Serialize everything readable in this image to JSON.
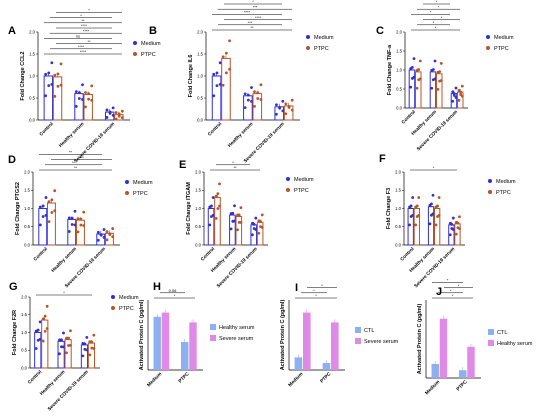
{
  "colors": {
    "medium": "#2f2fd6",
    "ptpc": "#b8542a",
    "healthy_lite": "#8fb0f0",
    "severe_lite": "#e08ae8"
  },
  "chart_data": [
    {
      "id": "A",
      "type": "bar",
      "label": "A",
      "ylabel": "Fold Change CCL2",
      "ylabel_italic": "CCL2",
      "ylim": [
        0,
        2
      ],
      "ticks": [
        "0.0",
        "0.5",
        "1.0",
        "1.5",
        "2.0"
      ],
      "categories": [
        "Control",
        "Healthy serum",
        "Severe COVID-19 serum"
      ],
      "series": [
        {
          "name": "Medium",
          "values": [
            1.0,
            0.6,
            0.18
          ]
        },
        {
          "name": "PTPC",
          "values": [
            0.98,
            0.58,
            0.12
          ]
        }
      ],
      "sig": [
        "****",
        "****",
        "**",
        "ns",
        "****",
        "****",
        "**",
        "*",
        "*"
      ]
    },
    {
      "id": "B",
      "type": "bar",
      "label": "B",
      "ylabel": "Fold Change IL6",
      "ylabel_italic": "IL6",
      "ylim": [
        0,
        2
      ],
      "ticks": [
        "0.0",
        "0.5",
        "1.0",
        "1.5",
        "2.0"
      ],
      "categories": [
        "Control",
        "Healthy serum",
        "Severe COVID-19 serum"
      ],
      "series": [
        {
          "name": "Medium",
          "values": [
            1.0,
            0.55,
            0.3
          ]
        },
        {
          "name": "PTPC",
          "values": [
            1.4,
            0.6,
            0.32
          ]
        }
      ],
      "sig": [
        "**",
        "***",
        "****",
        "****",
        "***",
        "*"
      ]
    },
    {
      "id": "C",
      "type": "bar",
      "label": "C",
      "ylabel": "Fold Change TNF-a",
      "ylabel_italic": "TNF-a",
      "ylim": [
        0,
        2
      ],
      "ticks": [
        "0.0",
        "0.5",
        "1.0",
        "1.5",
        "2.0"
      ],
      "categories": [
        "Control",
        "Healthy serum",
        "Severe COVID-19 serum"
      ],
      "series": [
        {
          "name": "Medium",
          "values": [
            1.0,
            0.95,
            0.38
          ]
        },
        {
          "name": "PTPC",
          "values": [
            0.95,
            0.9,
            0.42
          ]
        }
      ],
      "sig": [
        "*",
        "*",
        "*",
        "*",
        "*",
        "*"
      ]
    },
    {
      "id": "D",
      "type": "bar",
      "label": "D",
      "ylabel": "Fold Change PTGS2",
      "ylabel_italic": "PTGS2",
      "ylim": [
        0,
        2
      ],
      "ticks": [
        "0.0",
        "0.5",
        "1.0",
        "1.5",
        "2.0"
      ],
      "categories": [
        "Control",
        "Healthy serum",
        "Severe COVID-19 serum"
      ],
      "series": [
        {
          "name": "Medium",
          "values": [
            1.0,
            0.7,
            0.3
          ]
        },
        {
          "name": "PTPC",
          "values": [
            1.15,
            0.68,
            0.32
          ]
        }
      ],
      "sig": [
        "**",
        "**",
        "***",
        "**"
      ]
    },
    {
      "id": "E",
      "type": "bar",
      "label": "E",
      "ylabel": "Fold Change ITGAM",
      "ylabel_italic": "ITGAM",
      "ylim": [
        0,
        2
      ],
      "ticks": [
        "0.0",
        "0.5",
        "1.0",
        "1.5",
        "2.0"
      ],
      "categories": [
        "Control",
        "Healthy serum",
        "Severe COVID-19 serum"
      ],
      "series": [
        {
          "name": "Medium",
          "values": [
            1.0,
            0.82,
            0.55
          ]
        },
        {
          "name": "PTPC",
          "values": [
            1.3,
            0.78,
            0.62
          ]
        }
      ],
      "sig": [
        "**",
        "*"
      ]
    },
    {
      "id": "F",
      "type": "bar",
      "label": "F",
      "ylabel": "Fold Change F3",
      "ylabel_italic": "F3",
      "ylim": [
        0,
        2
      ],
      "ticks": [
        "0.0",
        "0.5",
        "1.0",
        "1.5",
        "2.0"
      ],
      "categories": [
        "Control",
        "Healthy serum",
        "Severe COVID-19 serum"
      ],
      "series": [
        {
          "name": "Medium",
          "values": [
            1.0,
            1.05,
            0.55
          ]
        },
        {
          "name": "PTPC",
          "values": [
            1.0,
            1.0,
            0.58
          ]
        }
      ],
      "sig": [
        "*"
      ]
    },
    {
      "id": "G",
      "type": "bar",
      "label": "G",
      "ylabel": "Fold Change F2R",
      "ylabel_italic": "F2R",
      "ylim": [
        0,
        2
      ],
      "ticks": [
        "0.0",
        "0.5",
        "1.0",
        "1.5",
        "2.0"
      ],
      "categories": [
        "Control",
        "Healthy serum",
        "Severe COVID-19 serum"
      ],
      "series": [
        {
          "name": "Medium",
          "values": [
            1.0,
            0.75,
            0.65
          ]
        },
        {
          "name": "PTPC",
          "values": [
            1.35,
            0.8,
            0.7
          ]
        }
      ],
      "sig": [
        "*"
      ]
    },
    {
      "id": "H",
      "type": "bar",
      "label": "H",
      "ylabel": "Activated Protein C (pg/ml)",
      "ylim": [
        0,
        25
      ],
      "ticks": [],
      "categories": [
        "Medium",
        "PTPC"
      ],
      "series": [
        {
          "name": "Healthy serum",
          "values": [
            19,
            10
          ]
        },
        {
          "name": "Severe serum",
          "values": [
            20.5,
            17
          ]
        }
      ],
      "sig": [
        "*",
        "0.06"
      ]
    },
    {
      "id": "I",
      "type": "bar",
      "label": "I",
      "ylabel": "Activated Protein C (pg/ml)",
      "ylim": [
        0,
        25
      ],
      "ticks": [],
      "categories": [
        "Medium",
        "PTPC"
      ],
      "series": [
        {
          "name": "CTL",
          "values": [
            4.5,
            2.5
          ]
        },
        {
          "name": "Severe serum",
          "values": [
            20.5,
            17
          ]
        }
      ],
      "sig": [
        "*",
        "*",
        "*"
      ]
    },
    {
      "id": "J",
      "type": "bar",
      "label": "J",
      "ylabel": "Activated Protein C (pg/ml)",
      "ylim": [
        0,
        25
      ],
      "ticks": [],
      "categories": [
        "Medium",
        "PTPC"
      ],
      "series": [
        {
          "name": "CTL",
          "values": [
            4.5,
            2.5
          ]
        },
        {
          "name": "Healthy serum",
          "values": [
            19,
            10
          ]
        }
      ],
      "sig": [
        "*",
        "*",
        "*",
        "*"
      ]
    }
  ]
}
